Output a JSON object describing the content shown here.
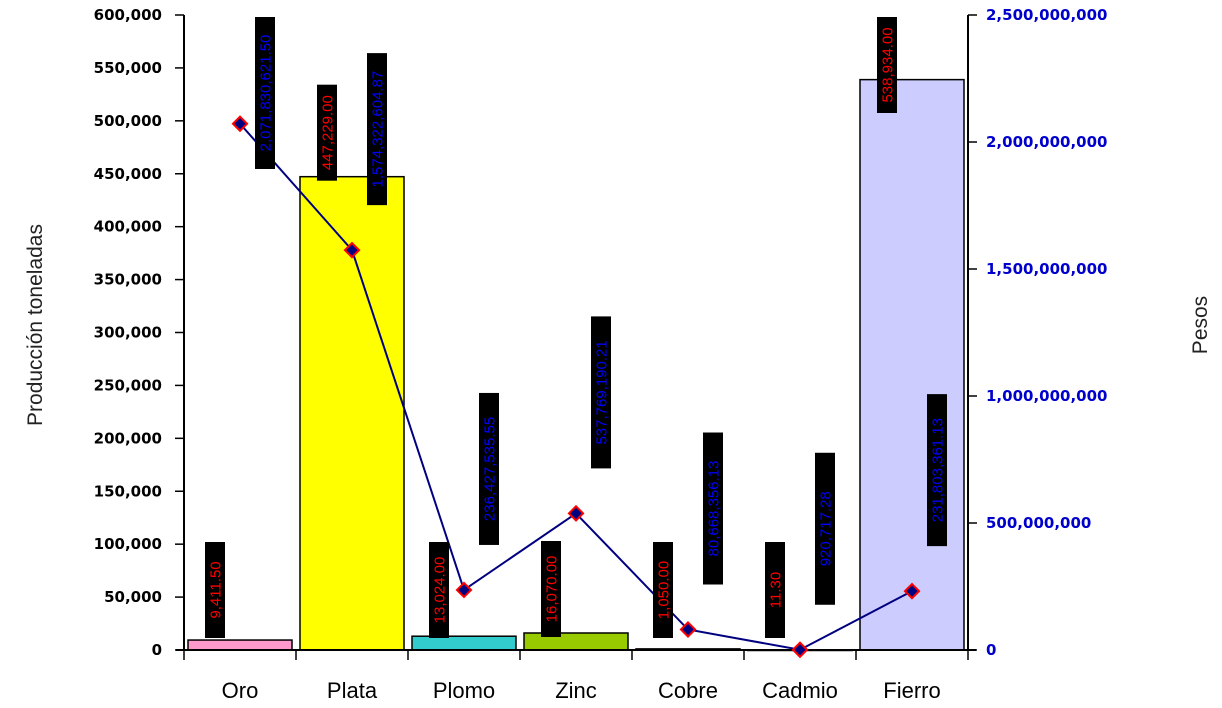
{
  "chart_data": {
    "type": "bar",
    "categories": [
      "Oro",
      "Plata",
      "Plomo",
      "Zinc",
      "Cobre",
      "Cadmio",
      "Fierro"
    ],
    "series": [
      {
        "axis": "left",
        "type": "bar",
        "values": [
          9411.5,
          447229.0,
          13024.0,
          16070.0,
          1050.0,
          11.3,
          538934.0
        ],
        "colors": [
          "#ff99cc",
          "#ffff00",
          "#33cccc",
          "#99cc00",
          "#cccccc",
          "#cccccc",
          "#ccccff"
        ],
        "labels": [
          "9,411.50",
          "447,229.00",
          "13,024.00",
          "16,070.00",
          "1,050.00",
          "11.30",
          "538,934.00"
        ],
        "label_color": "#ff0000"
      },
      {
        "axis": "right",
        "type": "line",
        "values": [
          2071830621.5,
          1574322604.87,
          236427535.55,
          537769190.21,
          80668356.13,
          920717.28,
          231803361.13
        ],
        "color": "#000080",
        "marker_color": "#ff0000",
        "labels": [
          "2,071,830,621.50",
          "1,574,322,604.87",
          "236,427,535.55",
          "537,769,190.21",
          "80,668,356.13",
          "920,717.28",
          "231,803,361.13"
        ],
        "label_color": "#0000ff"
      }
    ],
    "ylabel": "Producción toneladas",
    "y2label": "Pesos",
    "ylim": [
      0,
      600000
    ],
    "y2lim": [
      0,
      2500000000
    ],
    "yticks": [
      "0",
      "50,000",
      "100,000",
      "150,000",
      "200,000",
      "250,000",
      "300,000",
      "350,000",
      "400,000",
      "450,000",
      "500,000",
      "550,000",
      "600,000"
    ],
    "y2ticks": [
      "0",
      "500,000,000",
      "1,000,000,000",
      "1,500,000,000",
      "2,000,000,000",
      "2,500,000,000"
    ],
    "grid": false,
    "legend": "none"
  }
}
